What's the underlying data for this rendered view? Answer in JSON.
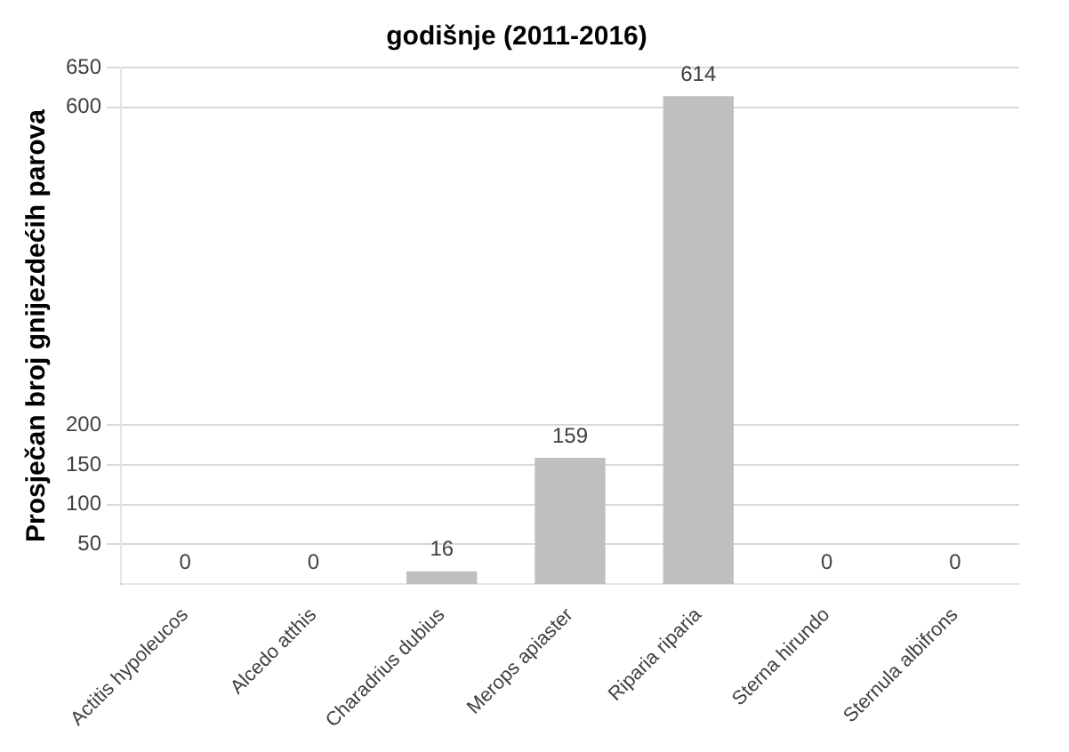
{
  "chart_data": {
    "type": "bar",
    "title": "godišnje (2011-2016)",
    "ylabel": "Prosječan broj gnijezdećih parova",
    "categories": [
      "Actitis hypoleucos",
      "Alcedo atthis",
      "Charadrius dubius",
      "Merops apiaster",
      "Riparia riparia",
      "Sterna hirundo",
      "Sternula albifrons"
    ],
    "values": [
      0,
      0,
      16,
      159,
      614,
      0,
      0
    ],
    "color": "#bfbfbf",
    "ylim": [
      0,
      650
    ],
    "yticks": [
      50,
      100,
      150,
      200,
      600,
      650
    ],
    "grid": "y",
    "data_labels": true,
    "legend": false
  }
}
